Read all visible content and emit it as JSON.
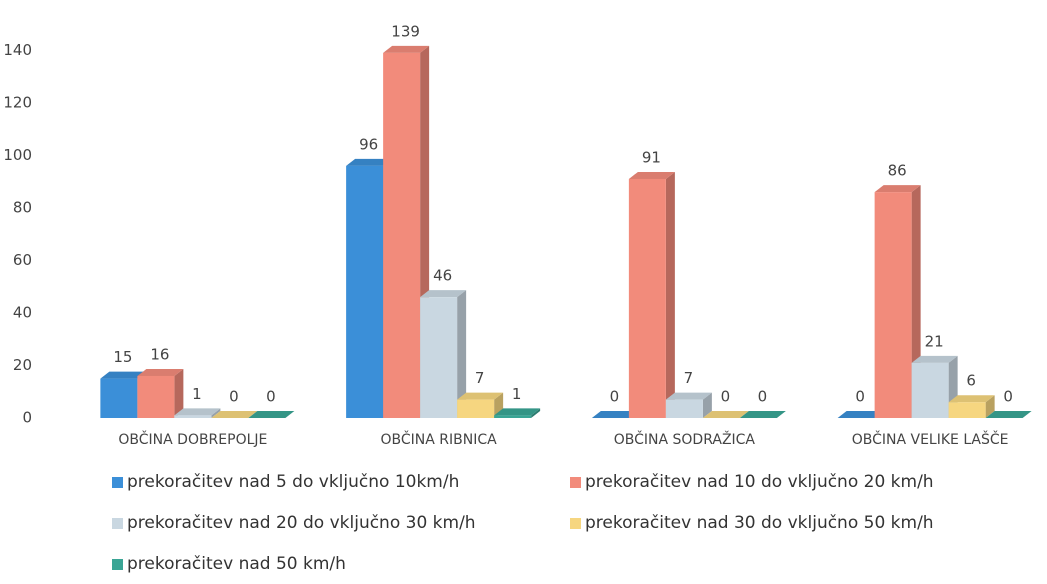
{
  "chart_data": {
    "type": "bar3d",
    "categories": [
      "OBČINA DOBREPOLJE",
      "OBČINA RIBNICA",
      "OBČINA SODRAŽICA",
      "OBČINA VELIKE LAŠČE"
    ],
    "series": [
      {
        "name": "prekoračitev nad 5 do vključno 10km/h",
        "color": "#3b8fd8",
        "values": [
          15,
          96,
          0,
          0
        ]
      },
      {
        "name": "prekoračitev nad 10 do vključno 20 km/h",
        "color": "#f28b7b",
        "values": [
          16,
          139,
          91,
          86
        ]
      },
      {
        "name": "prekoračitev nad 20 do vključno 30 km/h",
        "color": "#c9d7e1",
        "values": [
          1,
          46,
          7,
          21
        ]
      },
      {
        "name": "prekoračitev nad 30 do vključno 50 km/h",
        "color": "#f6d680",
        "values": [
          0,
          7,
          0,
          6
        ]
      },
      {
        "name": "prekoračitev nad 50 km/h",
        "color": "#3aa595",
        "values": [
          0,
          1,
          0,
          0
        ]
      }
    ],
    "ylim": [
      0,
      150
    ],
    "yticks": [
      0,
      20,
      40,
      60,
      80,
      100,
      120,
      140
    ],
    "grid": false
  }
}
